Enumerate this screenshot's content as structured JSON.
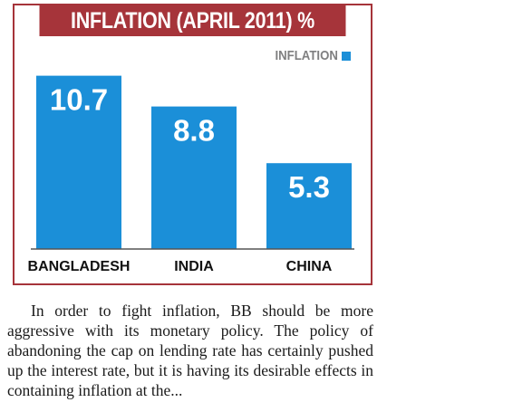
{
  "chart_data": {
    "type": "bar",
    "title": "INFLATION (APRIL 2011) %",
    "categories": [
      "BANGLADESH",
      "INDIA",
      "CHINA"
    ],
    "series": [
      {
        "name": "INFLATION",
        "values": [
          10.7,
          8.8,
          5.3
        ]
      }
    ],
    "value_labels": [
      "10.7",
      "8.8",
      "5.3"
    ],
    "ylim": [
      0,
      12.3
    ],
    "grid": false,
    "legend_position": "top-right",
    "colors": {
      "bar": "#1b8fd8",
      "title_bg": "#a6343a",
      "border": "#a6343a"
    }
  },
  "article": {
    "paragraph": "In order to fight inflation, BB should be more aggressive with its monetary policy. The policy of abandoning the cap on lending rate has certainly pushed up the interest rate, but it is having its desirable effects in containing inflation at the..."
  }
}
